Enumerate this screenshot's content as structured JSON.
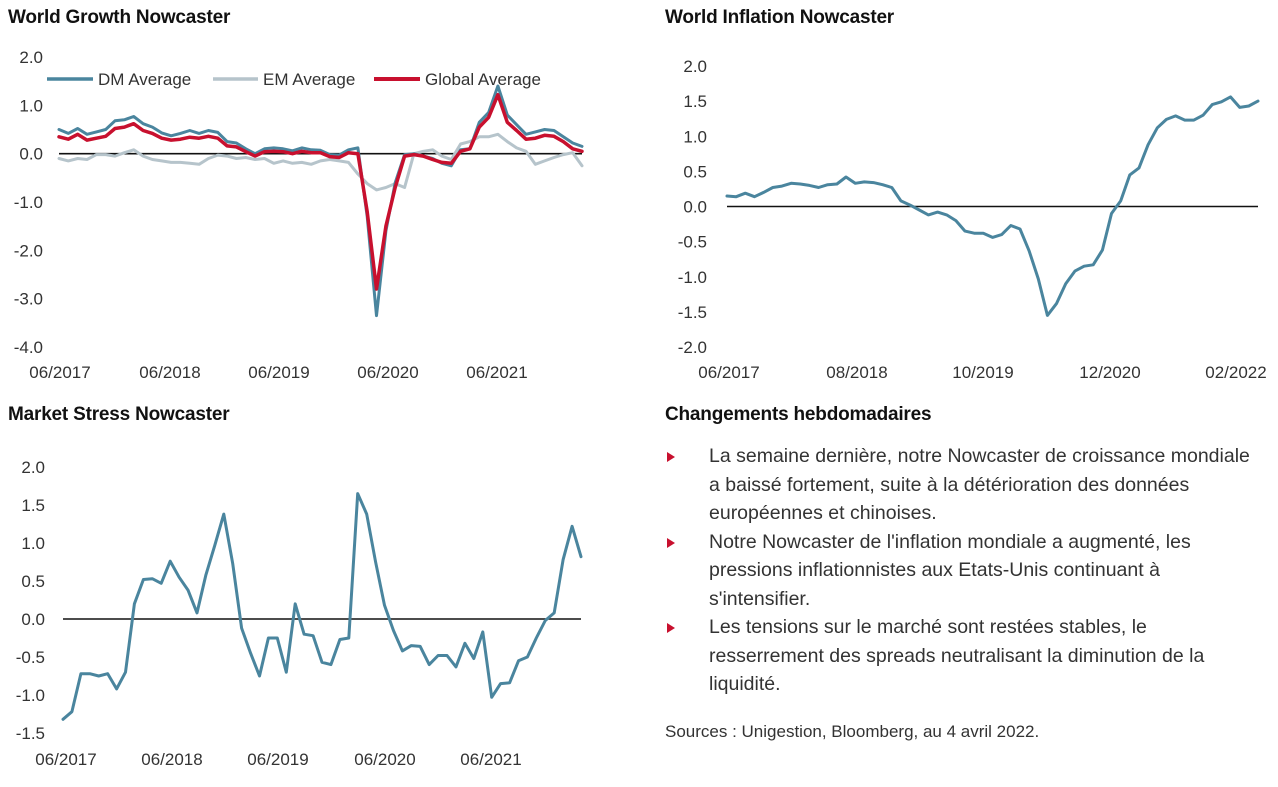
{
  "colors": {
    "dm": "#4a859e",
    "em": "#b6c4cb",
    "global": "#c8102e",
    "line": "#4a859e",
    "zero": "#111111",
    "bullet": "#c8102e"
  },
  "growth": {
    "title": "World Growth Nowcaster",
    "legend": [
      "DM Average",
      "EM Average",
      "Global Average"
    ]
  },
  "inflation": {
    "title": "World Inflation Nowcaster"
  },
  "stress": {
    "title": "Market Stress Nowcaster"
  },
  "weekly": {
    "title": "Changements hebdomadaires",
    "bullets": [
      "La semaine dernière, notre Nowcaster de croissance mondiale a baissé fortement, suite à la détérioration des données européennes et chinoises.",
      "Notre Nowcaster de l'inflation mondiale a augmenté, les pressions inflationnistes aux Etats-Unis continuant à s'intensifier.",
      "Les tensions sur le marché sont restées stables, le resserrement des spreads neutralisant la diminution de la liquidité."
    ],
    "source": "Sources : Unigestion, Bloomberg, au 4 avril 2022."
  },
  "chart_data": [
    {
      "type": "line",
      "title": "World Growth Nowcaster",
      "x_start": "06/2017",
      "x_end": "03/2022",
      "x_tick_labels": [
        "06/2017",
        "06/2018",
        "06/2019",
        "06/2020",
        "06/2021"
      ],
      "y_tick_labels": [
        "2.0",
        "1.0",
        "0.0",
        "-1.0",
        "-2.0",
        "-3.0",
        "-4.0"
      ],
      "ylim": [
        -4.0,
        2.0
      ],
      "legend_position": "top",
      "series": [
        {
          "name": "DM Average",
          "values": [
            0.5,
            0.42,
            0.52,
            0.4,
            0.45,
            0.5,
            0.68,
            0.7,
            0.77,
            0.62,
            0.55,
            0.43,
            0.37,
            0.42,
            0.48,
            0.42,
            0.48,
            0.44,
            0.25,
            0.22,
            0.1,
            0.0,
            0.1,
            0.12,
            0.1,
            0.06,
            0.12,
            0.08,
            0.07,
            -0.02,
            -0.03,
            0.08,
            0.12,
            -1.3,
            -3.35,
            -1.6,
            -0.6,
            -0.02,
            0.0,
            -0.05,
            -0.1,
            -0.2,
            -0.25,
            0.08,
            0.1,
            0.65,
            0.85,
            1.4,
            0.8,
            0.6,
            0.4,
            0.45,
            0.5,
            0.48,
            0.35,
            0.22,
            0.15
          ]
        },
        {
          "name": "EM Average",
          "values": [
            -0.1,
            -0.15,
            -0.1,
            -0.12,
            -0.02,
            -0.02,
            -0.05,
            0.02,
            0.08,
            -0.05,
            -0.12,
            -0.15,
            -0.18,
            -0.18,
            -0.2,
            -0.22,
            -0.1,
            -0.03,
            -0.05,
            -0.1,
            -0.08,
            -0.12,
            -0.1,
            -0.2,
            -0.15,
            -0.2,
            -0.18,
            -0.22,
            -0.15,
            -0.12,
            -0.15,
            -0.18,
            -0.42,
            -0.62,
            -0.75,
            -0.7,
            -0.62,
            -0.7,
            0.0,
            0.05,
            0.08,
            -0.05,
            -0.12,
            0.2,
            0.25,
            0.35,
            0.35,
            0.4,
            0.25,
            0.12,
            0.05,
            -0.22,
            -0.15,
            -0.08,
            -0.02,
            0.02,
            -0.25
          ]
        },
        {
          "name": "Global Average",
          "values": [
            0.35,
            0.3,
            0.4,
            0.28,
            0.32,
            0.36,
            0.52,
            0.55,
            0.62,
            0.48,
            0.42,
            0.32,
            0.28,
            0.3,
            0.34,
            0.32,
            0.36,
            0.32,
            0.16,
            0.14,
            0.04,
            -0.05,
            0.04,
            0.05,
            0.04,
            0.0,
            0.05,
            0.02,
            0.02,
            -0.06,
            -0.08,
            0.02,
            0.0,
            -1.2,
            -2.8,
            -1.5,
            -0.7,
            -0.05,
            -0.02,
            -0.05,
            -0.12,
            -0.18,
            -0.2,
            0.05,
            0.1,
            0.55,
            0.75,
            1.22,
            0.65,
            0.48,
            0.3,
            0.32,
            0.38,
            0.36,
            0.25,
            0.1,
            0.05
          ]
        }
      ]
    },
    {
      "type": "line",
      "title": "World Inflation Nowcaster",
      "x_start": "06/2017",
      "x_end": "03/2022",
      "x_tick_labels": [
        "06/2017",
        "08/2018",
        "10/2019",
        "12/2020",
        "02/2022"
      ],
      "y_tick_labels": [
        "2.0",
        "1.5",
        "1.0",
        "0.5",
        "0.0",
        "-0.5",
        "-1.0",
        "-1.5",
        "-2.0"
      ],
      "ylim": [
        -2.0,
        2.0
      ],
      "series": [
        {
          "name": "",
          "values": [
            0.15,
            0.14,
            0.19,
            0.14,
            0.2,
            0.27,
            0.29,
            0.33,
            0.32,
            0.3,
            0.27,
            0.31,
            0.32,
            0.42,
            0.33,
            0.35,
            0.34,
            0.31,
            0.27,
            0.08,
            0.02,
            -0.05,
            -0.12,
            -0.08,
            -0.12,
            -0.2,
            -0.35,
            -0.38,
            -0.38,
            -0.44,
            -0.4,
            -0.27,
            -0.32,
            -0.63,
            -1.03,
            -1.55,
            -1.38,
            -1.1,
            -0.92,
            -0.85,
            -0.83,
            -0.62,
            -0.1,
            0.08,
            0.45,
            0.55,
            0.88,
            1.12,
            1.24,
            1.29,
            1.23,
            1.23,
            1.3,
            1.45,
            1.49,
            1.56,
            1.41,
            1.43,
            1.5
          ]
        }
      ]
    },
    {
      "type": "line",
      "title": "Market Stress Nowcaster",
      "x_start": "06/2017",
      "x_end": "03/2022",
      "x_tick_labels": [
        "06/2017",
        "06/2018",
        "06/2019",
        "06/2020",
        "06/2021"
      ],
      "y_tick_labels": [
        "2.0",
        "1.5",
        "1.0",
        "0.5",
        "0.0",
        "-0.5",
        "-1.0",
        "-1.5"
      ],
      "ylim": [
        -1.5,
        2.0
      ],
      "series": [
        {
          "name": "",
          "values": [
            -1.32,
            -1.22,
            -0.72,
            -0.72,
            -0.75,
            -0.72,
            -0.92,
            -0.7,
            0.2,
            0.52,
            0.53,
            0.47,
            0.76,
            0.55,
            0.38,
            0.08,
            0.58,
            0.97,
            1.38,
            0.73,
            -0.12,
            -0.45,
            -0.75,
            -0.25,
            -0.25,
            -0.7,
            0.2,
            -0.2,
            -0.22,
            -0.57,
            -0.6,
            -0.27,
            -0.25,
            1.65,
            1.38,
            0.75,
            0.18,
            -0.15,
            -0.42,
            -0.35,
            -0.36,
            -0.6,
            -0.48,
            -0.48,
            -0.63,
            -0.32,
            -0.52,
            -0.17,
            -1.03,
            -0.85,
            -0.84,
            -0.55,
            -0.5,
            -0.25,
            -0.02,
            0.08,
            0.78,
            1.22,
            0.82
          ]
        }
      ]
    }
  ]
}
